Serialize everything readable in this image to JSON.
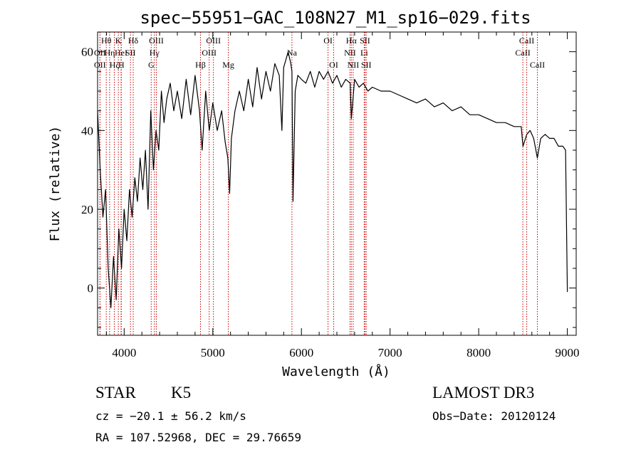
{
  "chart_data": {
    "type": "line",
    "title": "spec−55951−GAC_108N27_M1_sp16−029.fits",
    "xlabel": "Wavelength (Å)",
    "ylabel": "Flux (relative)",
    "xlim": [
      3700,
      9100
    ],
    "ylim": [
      -12,
      65
    ],
    "xticks": [
      4000,
      5000,
      6000,
      7000,
      8000,
      9000
    ],
    "xtick_labels": [
      "4000",
      "5000",
      "6000",
      "7000",
      "8000",
      "9000"
    ],
    "yticks": [
      0,
      20,
      40,
      60
    ],
    "ytick_labels": [
      "0",
      "20",
      "40",
      "60"
    ],
    "line_color": "#000000",
    "marker_color": "#cc0000",
    "series": [
      {
        "name": "flux",
        "x": [
          3700,
          3730,
          3760,
          3790,
          3820,
          3850,
          3880,
          3910,
          3940,
          3970,
          4000,
          4030,
          4060,
          4090,
          4120,
          4150,
          4180,
          4210,
          4240,
          4270,
          4300,
          4330,
          4360,
          4390,
          4420,
          4450,
          4480,
          4520,
          4560,
          4600,
          4650,
          4700,
          4750,
          4800,
          4850,
          4880,
          4920,
          4960,
          5000,
          5050,
          5100,
          5140,
          5170,
          5190,
          5210,
          5250,
          5300,
          5350,
          5400,
          5450,
          5500,
          5550,
          5600,
          5650,
          5700,
          5750,
          5780,
          5800,
          5850,
          5880,
          5893,
          5905,
          5930,
          5960,
          6000,
          6050,
          6100,
          6150,
          6200,
          6250,
          6300,
          6350,
          6400,
          6450,
          6500,
          6550,
          6563,
          6600,
          6650,
          6700,
          6750,
          6800,
          6900,
          7000,
          7100,
          7200,
          7300,
          7400,
          7500,
          7600,
          7700,
          7800,
          7900,
          8000,
          8100,
          8200,
          8300,
          8400,
          8480,
          8500,
          8542,
          8580,
          8620,
          8662,
          8700,
          8750,
          8800,
          8850,
          8900,
          8950,
          8980,
          9000
        ],
        "y": [
          45,
          30,
          18,
          25,
          5,
          -5,
          8,
          -3,
          15,
          5,
          20,
          12,
          25,
          18,
          28,
          22,
          33,
          25,
          35,
          20,
          45,
          30,
          40,
          35,
          50,
          42,
          48,
          52,
          45,
          50,
          43,
          53,
          44,
          54,
          45,
          35,
          50,
          40,
          47,
          40,
          45,
          37,
          33,
          24,
          38,
          45,
          50,
          45,
          53,
          46,
          56,
          48,
          55,
          50,
          57,
          54,
          40,
          56,
          60,
          57,
          55,
          22,
          50,
          54,
          53,
          52,
          55,
          51,
          55,
          53,
          55,
          52,
          54,
          51,
          53,
          52,
          43,
          53,
          51,
          52,
          50,
          51,
          50,
          50,
          49,
          48,
          47,
          48,
          46,
          47,
          45,
          46,
          44,
          44,
          43,
          42,
          42,
          41,
          41,
          36,
          39,
          40,
          38,
          33,
          38,
          39,
          38,
          38,
          36,
          36,
          35,
          -1
        ]
      }
    ],
    "line_markers": [
      {
        "name": "Hθ",
        "x": 3798,
        "row": 1
      },
      {
        "name": "OII",
        "x": 3727,
        "row": 2
      },
      {
        "name": "Hη",
        "x": 3836,
        "row": 2
      },
      {
        "name": "OII",
        "x": 3727,
        "row": 3
      },
      {
        "name": "Hζ",
        "x": 3889,
        "row": 3
      },
      {
        "name": "K",
        "x": 3934,
        "row": 1
      },
      {
        "name": "HeI",
        "x": 3965,
        "row": 2
      },
      {
        "name": "H",
        "x": 3968,
        "row": 3
      },
      {
        "name": "Hδ",
        "x": 4102,
        "row": 1
      },
      {
        "name": "SII",
        "x": 4071,
        "row": 2
      },
      {
        "name": "OIII",
        "x": 4363,
        "row": 1
      },
      {
        "name": "Hγ",
        "x": 4341,
        "row": 2
      },
      {
        "name": "G",
        "x": 4305,
        "row": 3
      },
      {
        "name": "Hβ",
        "x": 4861,
        "row": 3
      },
      {
        "name": "OIII",
        "x": 5007,
        "row": 1
      },
      {
        "name": "OIII",
        "x": 4959,
        "row": 2
      },
      {
        "name": "Mg",
        "x": 5175,
        "row": 3
      },
      {
        "name": "Na",
        "x": 5893,
        "row": 2
      },
      {
        "name": "OI",
        "x": 6300,
        "row": 1
      },
      {
        "name": "OI",
        "x": 6364,
        "row": 3
      },
      {
        "name": "Hα",
        "x": 6563,
        "row": 1
      },
      {
        "name": "NII",
        "x": 6548,
        "row": 2
      },
      {
        "name": "NII",
        "x": 6584,
        "row": 3
      },
      {
        "name": "SII",
        "x": 6717,
        "row": 1
      },
      {
        "name": "Li",
        "x": 6708,
        "row": 2
      },
      {
        "name": "SII",
        "x": 6731,
        "row": 3
      },
      {
        "name": "CaII",
        "x": 8542,
        "row": 1
      },
      {
        "name": "CaII",
        "x": 8498,
        "row": 2
      },
      {
        "name": "CaII",
        "x": 8662,
        "row": 3
      }
    ]
  },
  "info": {
    "class": "STAR",
    "subclass": "K5",
    "survey": "LAMOST DR3",
    "cz": "cz = −20.1 ± 56.2 km/s",
    "obs_date": "Obs−Date: 20120124",
    "coords": "RA = 107.52968, DEC =  29.76659"
  }
}
